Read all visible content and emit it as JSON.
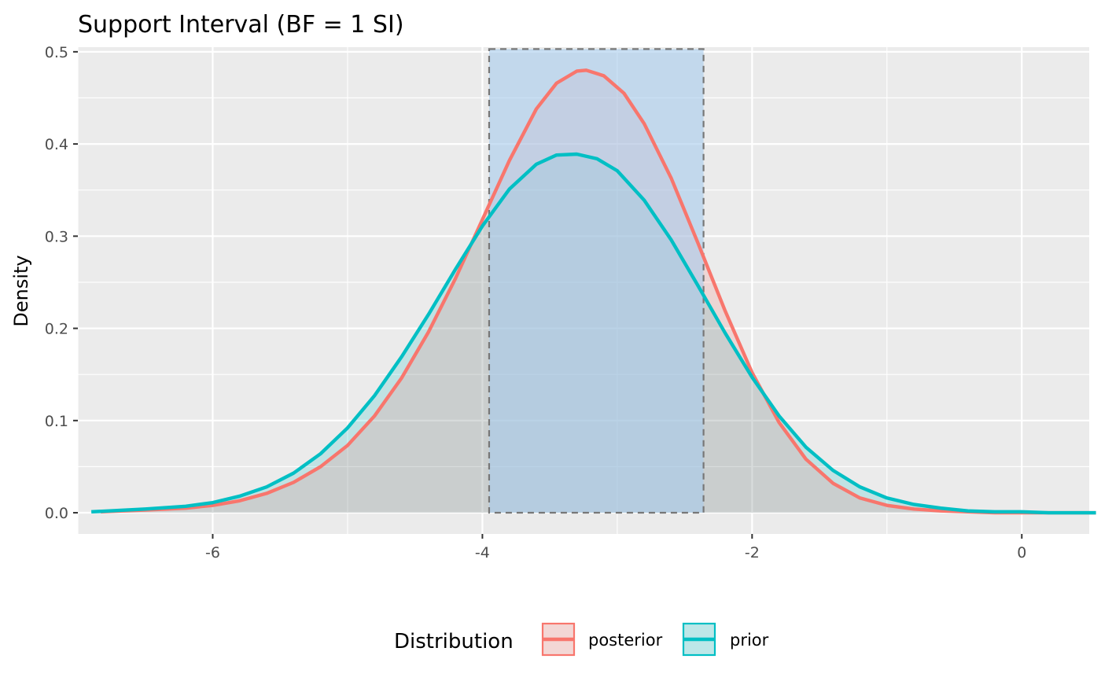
{
  "chart_data": {
    "type": "area",
    "title": "Support Interval (BF = 1 SI)",
    "xlabel": "",
    "ylabel": "Density",
    "xlim": [
      -7.0,
      0.5
    ],
    "ylim": [
      -0.023,
      0.505
    ],
    "x_ticks": [
      -6,
      -4,
      -2,
      0
    ],
    "x_tick_labels": [
      "-6",
      "-4",
      "-2",
      "0"
    ],
    "y_ticks": [
      0.0,
      0.1,
      0.2,
      0.3,
      0.4,
      0.5
    ],
    "y_tick_labels": [
      "0.0",
      "0.1",
      "0.2",
      "0.3",
      "0.4",
      "0.5"
    ],
    "grid": true,
    "legend_title": "Distribution",
    "legend_position": "bottom",
    "support_interval": {
      "low": -3.95,
      "high": -2.36,
      "top": 0.503,
      "fill": "#a6cbec",
      "border": "#777777"
    },
    "series": [
      {
        "name": "posterior",
        "color": "#f8766d",
        "x": [
          -6.83,
          -6.5,
          -6.2,
          -6.0,
          -5.8,
          -5.6,
          -5.4,
          -5.2,
          -5.0,
          -4.8,
          -4.6,
          -4.4,
          -4.2,
          -4.0,
          -3.8,
          -3.6,
          -3.45,
          -3.3,
          -3.23,
          -3.1,
          -2.95,
          -2.8,
          -2.6,
          -2.4,
          -2.2,
          -2.0,
          -1.8,
          -1.6,
          -1.4,
          -1.2,
          -1.0,
          -0.8,
          -0.6,
          -0.4,
          -0.2,
          0.0,
          0.2,
          0.55
        ],
        "y": [
          0.001,
          0.003,
          0.005,
          0.008,
          0.013,
          0.021,
          0.033,
          0.05,
          0.073,
          0.105,
          0.146,
          0.196,
          0.254,
          0.318,
          0.382,
          0.438,
          0.466,
          0.479,
          0.48,
          0.474,
          0.455,
          0.422,
          0.363,
          0.292,
          0.219,
          0.152,
          0.098,
          0.058,
          0.032,
          0.016,
          0.008,
          0.004,
          0.002,
          0.001,
          0.0,
          0.0,
          0.0,
          0.0
        ]
      },
      {
        "name": "prior",
        "color": "#00bfc4",
        "x": [
          -6.9,
          -6.5,
          -6.2,
          -6.0,
          -5.8,
          -5.6,
          -5.4,
          -5.2,
          -5.0,
          -4.8,
          -4.6,
          -4.4,
          -4.2,
          -4.0,
          -3.8,
          -3.6,
          -3.45,
          -3.3,
          -3.15,
          -3.0,
          -2.8,
          -2.6,
          -2.4,
          -2.2,
          -2.0,
          -1.8,
          -1.6,
          -1.4,
          -1.2,
          -1.0,
          -0.8,
          -0.6,
          -0.4,
          -0.2,
          0.0,
          0.2,
          0.55
        ],
        "y": [
          0.001,
          0.004,
          0.007,
          0.011,
          0.018,
          0.028,
          0.043,
          0.064,
          0.092,
          0.127,
          0.169,
          0.215,
          0.264,
          0.311,
          0.351,
          0.378,
          0.388,
          0.389,
          0.384,
          0.371,
          0.339,
          0.296,
          0.246,
          0.195,
          0.147,
          0.105,
          0.071,
          0.046,
          0.028,
          0.016,
          0.009,
          0.005,
          0.002,
          0.001,
          0.001,
          0.0,
          0.0
        ]
      }
    ]
  }
}
